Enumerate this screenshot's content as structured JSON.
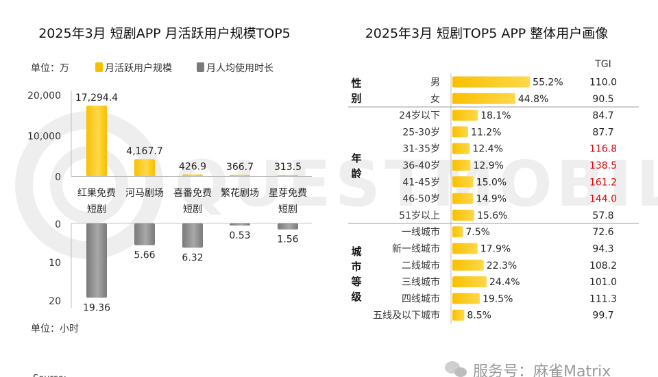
{
  "colors": {
    "accent_yellow": "#F9C000",
    "accent_yellow_light": "#FFD84A",
    "bar_gray": "#7A7A7A",
    "bar_gray_light": "#A8A8A8",
    "tgi_highlight": "#E00000",
    "watermark": "#EEEEEE",
    "grid_line": "#BDBDBD"
  },
  "watermark_text": "QUESTMOBILE",
  "footer": {
    "source_visible_fragment": "Source:",
    "wechat_label": "服务号：麻雀Matrix"
  },
  "chart_data": [
    {
      "type": "bar",
      "title": "2025年3月 短剧APP 月活跃用户规模TOP5",
      "unit_top": "单位：万",
      "unit_bottom": "单位：小时",
      "categories": [
        "红果免费短剧",
        "河马剧场",
        "喜番免费短剧",
        "繁花剧场",
        "星芽免费短剧"
      ],
      "category_lines": [
        [
          "红果免费",
          "短剧"
        ],
        [
          "河马剧场"
        ],
        [
          "喜番免费",
          "短剧"
        ],
        [
          "繁花剧场"
        ],
        [
          "星芽免费",
          "短剧"
        ]
      ],
      "legend": [
        "月活跃用户规模",
        "月人均使用时长"
      ],
      "series": [
        {
          "name": "月活跃用户规模",
          "values": [
            17294.4,
            4167.7,
            426.9,
            366.7,
            313.5
          ],
          "labels": [
            "17,294.4",
            "4,167.7",
            "426.9",
            "366.7",
            "313.5"
          ],
          "ylim": [
            0,
            20000
          ],
          "yticks": [
            "20,000",
            "10,000",
            "0"
          ],
          "ytick_values": [
            20000,
            10000,
            0
          ]
        },
        {
          "name": "月人均使用时长",
          "values": [
            19.36,
            5.66,
            6.32,
            0.53,
            1.56
          ],
          "labels": [
            "19.36",
            "5.66",
            "6.32",
            "0.53",
            "1.56"
          ],
          "ylim": [
            0,
            20
          ],
          "yticks": [
            "0",
            "10",
            "20"
          ],
          "ytick_values": [
            0,
            10,
            20
          ],
          "inverted": true
        }
      ]
    },
    {
      "type": "bar",
      "orientation": "horizontal",
      "title": "2025年3月 短剧TOP5 APP 整体用户画像",
      "tgi_header": "TGI",
      "groups": [
        {
          "name": "性别",
          "name_chars": [
            "性",
            "别"
          ],
          "items": [
            {
              "label": "男",
              "value": 55.2,
              "value_label": "55.2%",
              "tgi": "110.0",
              "highlight": false
            },
            {
              "label": "女",
              "value": 44.8,
              "value_label": "44.8%",
              "tgi": "90.5",
              "highlight": false
            }
          ]
        },
        {
          "name": "年龄",
          "name_chars": [
            "年",
            "龄"
          ],
          "items": [
            {
              "label": "24岁以下",
              "value": 18.1,
              "value_label": "18.1%",
              "tgi": "84.7",
              "highlight": false
            },
            {
              "label": "25-30岁",
              "value": 11.2,
              "value_label": "11.2%",
              "tgi": "87.7",
              "highlight": false
            },
            {
              "label": "31-35岁",
              "value": 12.4,
              "value_label": "12.4%",
              "tgi": "116.8",
              "highlight": true
            },
            {
              "label": "36-40岁",
              "value": 12.9,
              "value_label": "12.9%",
              "tgi": "138.5",
              "highlight": true
            },
            {
              "label": "41-45岁",
              "value": 15.0,
              "value_label": "15.0%",
              "tgi": "161.2",
              "highlight": true
            },
            {
              "label": "46-50岁",
              "value": 14.9,
              "value_label": "14.9%",
              "tgi": "144.0",
              "highlight": true
            },
            {
              "label": "51岁以上",
              "value": 15.6,
              "value_label": "15.6%",
              "tgi": "57.8",
              "highlight": false
            }
          ]
        },
        {
          "name": "城市等级",
          "name_chars": [
            "城",
            "市",
            "等",
            "级"
          ],
          "items": [
            {
              "label": "一线城市",
              "value": 7.5,
              "value_label": "7.5%",
              "tgi": "72.6",
              "highlight": false
            },
            {
              "label": "新一线城市",
              "value": 17.9,
              "value_label": "17.9%",
              "tgi": "94.3",
              "highlight": false
            },
            {
              "label": "二线城市",
              "value": 22.3,
              "value_label": "22.3%",
              "tgi": "108.2",
              "highlight": false
            },
            {
              "label": "三线城市",
              "value": 24.4,
              "value_label": "24.4%",
              "tgi": "101.0",
              "highlight": false
            },
            {
              "label": "四线城市",
              "value": 19.5,
              "value_label": "19.5%",
              "tgi": "111.3",
              "highlight": false
            },
            {
              "label": "五线及以下城市",
              "value": 8.5,
              "value_label": "8.5%",
              "tgi": "99.7",
              "highlight": false
            }
          ]
        }
      ]
    }
  ]
}
